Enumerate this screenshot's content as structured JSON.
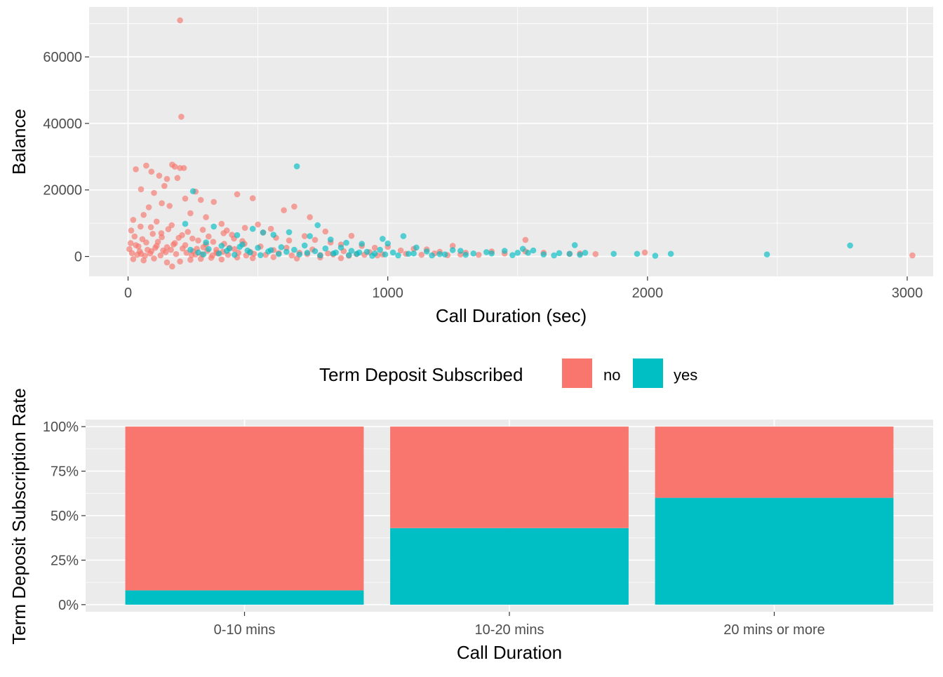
{
  "colors": {
    "no": "#F8766D",
    "yes": "#00BFC4",
    "panel": "#EBEBEB",
    "grid_major": "#FFFFFF",
    "tick_text": "#4D4D4D"
  },
  "legend": {
    "title": "Term Deposit Subscribed",
    "placement": "between-panels-center",
    "entries": [
      {
        "key": "no",
        "label": "no"
      },
      {
        "key": "yes",
        "label": "yes"
      }
    ]
  },
  "chart_data": [
    {
      "type": "scatter",
      "xlabel": "Call Duration (sec)",
      "ylabel": "Balance",
      "xlim": [
        -150,
        3100
      ],
      "ylim": [
        -6000,
        75000
      ],
      "xticks": [
        0,
        1000,
        2000,
        3000
      ],
      "xtick_labels": [
        "0",
        "1000",
        "2000",
        "3000"
      ],
      "yticks": [
        0,
        20000,
        40000,
        60000
      ],
      "ytick_labels": [
        "0",
        "20000",
        "40000",
        "60000"
      ],
      "grid": true,
      "series": [
        {
          "key": "no",
          "points": [
            [
              200,
              71000
            ],
            [
              205,
              42000
            ],
            [
              30,
              26200
            ],
            [
              70,
              27300
            ],
            [
              90,
              25500
            ],
            [
              120,
              24300
            ],
            [
              170,
              27600
            ],
            [
              180,
              27000
            ],
            [
              200,
              26600
            ],
            [
              215,
              26600
            ],
            [
              150,
              23300
            ],
            [
              190,
              23600
            ],
            [
              260,
              19500
            ],
            [
              50,
              20200
            ],
            [
              140,
              21200
            ],
            [
              100,
              19100
            ],
            [
              220,
              17400
            ],
            [
              280,
              17000
            ],
            [
              480,
              17500
            ],
            [
              640,
              15000
            ],
            [
              420,
              18700
            ],
            [
              330,
              16400
            ],
            [
              600,
              13900
            ],
            [
              700,
              11800
            ],
            [
              500,
              9600
            ],
            [
              550,
              8300
            ],
            [
              760,
              7500
            ],
            [
              860,
              6200
            ],
            [
              1530,
              5000
            ],
            [
              1250,
              3200
            ],
            [
              1100,
              2300
            ],
            [
              1530,
              1500
            ],
            [
              1800,
              700
            ],
            [
              1990,
              1200
            ],
            [
              1740,
              900
            ],
            [
              3020,
              300
            ],
            [
              20,
              11000
            ],
            [
              60,
              12500
            ],
            [
              80,
              14800
            ],
            [
              110,
              10500
            ],
            [
              130,
              16000
            ],
            [
              160,
              15200
            ],
            [
              240,
              13000
            ],
            [
              300,
              11800
            ],
            [
              360,
              9800
            ],
            [
              380,
              7800
            ],
            [
              400,
              6500
            ],
            [
              450,
              8600
            ],
            [
              520,
              7200
            ],
            [
              570,
              5600
            ],
            [
              620,
              4800
            ],
            [
              680,
              6100
            ],
            [
              720,
              5000
            ],
            [
              780,
              4200
            ],
            [
              820,
              3600
            ],
            [
              900,
              3200
            ],
            [
              950,
              2600
            ],
            [
              1000,
              2900
            ],
            [
              1050,
              1800
            ],
            [
              1150,
              2100
            ],
            [
              1200,
              1400
            ],
            [
              1300,
              1100
            ],
            [
              1400,
              1500
            ],
            [
              1450,
              900
            ],
            [
              1600,
              1100
            ],
            [
              1700,
              800
            ],
            [
              10,
              4000
            ],
            [
              25,
              6000
            ],
            [
              40,
              3000
            ],
            [
              55,
              5200
            ],
            [
              75,
              2000
            ],
            [
              95,
              6800
            ],
            [
              115,
              4400
            ],
            [
              135,
              1800
            ],
            [
              155,
              8200
            ],
            [
              175,
              3600
            ],
            [
              195,
              5600
            ],
            [
              210,
              2400
            ],
            [
              230,
              7400
            ],
            [
              250,
              1600
            ],
            [
              270,
              4800
            ],
            [
              290,
              2800
            ],
            [
              310,
              6000
            ],
            [
              340,
              1200
            ],
            [
              370,
              3800
            ],
            [
              410,
              2200
            ],
            [
              440,
              4600
            ],
            [
              470,
              1400
            ],
            [
              510,
              3000
            ],
            [
              560,
              1900
            ],
            [
              610,
              2600
            ],
            [
              660,
              1100
            ],
            [
              710,
              2100
            ],
            [
              770,
              900
            ],
            [
              830,
              1600
            ],
            [
              880,
              700
            ],
            [
              930,
              1300
            ],
            [
              980,
              600
            ],
            [
              1070,
              800
            ],
            [
              1130,
              500
            ],
            [
              1180,
              900
            ],
            [
              1230,
              400
            ],
            [
              1280,
              600
            ],
            [
              1350,
              500
            ],
            [
              15,
              1000
            ],
            [
              35,
              500
            ],
            [
              45,
              1500
            ],
            [
              65,
              200
            ],
            [
              85,
              900
            ],
            [
              105,
              2600
            ],
            [
              125,
              300
            ],
            [
              145,
              1300
            ],
            [
              165,
              2000
            ],
            [
              185,
              700
            ],
            [
              225,
              1100
            ],
            [
              245,
              400
            ],
            [
              265,
              2300
            ],
            [
              285,
              600
            ],
            [
              305,
              1700
            ],
            [
              325,
              300
            ],
            [
              345,
              900
            ],
            [
              365,
              1400
            ],
            [
              385,
              500
            ],
            [
              425,
              1100
            ],
            [
              455,
              300
            ],
            [
              485,
              800
            ],
            [
              530,
              500
            ],
            [
              580,
              1000
            ],
            [
              630,
              300
            ],
            [
              690,
              700
            ],
            [
              740,
              400
            ],
            [
              790,
              600
            ],
            [
              850,
              200
            ],
            [
              910,
              500
            ],
            [
              960,
              300
            ],
            [
              20,
              -800
            ],
            [
              60,
              -1200
            ],
            [
              100,
              -600
            ],
            [
              150,
              -1800
            ],
            [
              170,
              -3000
            ],
            [
              200,
              -1500
            ],
            [
              240,
              -1000
            ],
            [
              280,
              -700
            ],
            [
              320,
              -400
            ],
            [
              360,
              -900
            ],
            [
              420,
              -300
            ],
            [
              480,
              -500
            ],
            [
              560,
              -200
            ],
            [
              650,
              -600
            ],
            [
              740,
              -300
            ],
            [
              820,
              -500
            ],
            [
              12,
              7800
            ],
            [
              48,
              9000
            ],
            [
              88,
              8800
            ],
            [
              128,
              7000
            ],
            [
              168,
              9400
            ],
            [
              208,
              6400
            ],
            [
              248,
              5400
            ],
            [
              288,
              8000
            ],
            [
              328,
              4400
            ],
            [
              368,
              7000
            ],
            [
              408,
              5400
            ],
            [
              448,
              3800
            ],
            [
              5,
              2200
            ],
            [
              30,
              3400
            ],
            [
              50,
              800
            ],
            [
              70,
              4200
            ],
            [
              90,
              1600
            ],
            [
              110,
              3200
            ],
            [
              130,
              5800
            ],
            [
              150,
              2800
            ],
            [
              180,
              4000
            ],
            [
              220,
              3400
            ],
            [
              260,
              600
            ],
            [
              300,
              3600
            ],
            [
              340,
              2000
            ],
            [
              390,
              2600
            ]
          ]
        },
        {
          "key": "yes",
          "points": [
            [
              650,
              27100
            ],
            [
              250,
              19600
            ],
            [
              220,
              9800
            ],
            [
              330,
              9000
            ],
            [
              480,
              8300
            ],
            [
              520,
              7200
            ],
            [
              560,
              6500
            ],
            [
              420,
              6400
            ],
            [
              620,
              7300
            ],
            [
              700,
              6100
            ],
            [
              730,
              9400
            ],
            [
              780,
              5100
            ],
            [
              840,
              4100
            ],
            [
              900,
              3800
            ],
            [
              980,
              5300
            ],
            [
              1060,
              6100
            ],
            [
              1000,
              3900
            ],
            [
              1110,
              2700
            ],
            [
              1250,
              1900
            ],
            [
              1280,
              1700
            ],
            [
              1330,
              900
            ],
            [
              1380,
              1300
            ],
            [
              1450,
              1700
            ],
            [
              1500,
              1100
            ],
            [
              1520,
              2300
            ],
            [
              1560,
              1800
            ],
            [
              1600,
              600
            ],
            [
              1660,
              1000
            ],
            [
              1700,
              800
            ],
            [
              1720,
              3400
            ],
            [
              1760,
              1100
            ],
            [
              1870,
              800
            ],
            [
              1960,
              800
            ],
            [
              2030,
              200
            ],
            [
              2090,
              800
            ],
            [
              2460,
              600
            ],
            [
              2780,
              3300
            ],
            [
              300,
              4200
            ],
            [
              360,
              3200
            ],
            [
              390,
              2400
            ],
            [
              440,
              3600
            ],
            [
              460,
              1800
            ],
            [
              500,
              2600
            ],
            [
              540,
              1500
            ],
            [
              590,
              2800
            ],
            [
              640,
              2000
            ],
            [
              680,
              3300
            ],
            [
              720,
              1600
            ],
            [
              760,
              2400
            ],
            [
              800,
              1200
            ],
            [
              820,
              2700
            ],
            [
              860,
              1700
            ],
            [
              880,
              800
            ],
            [
              920,
              1400
            ],
            [
              950,
              900
            ],
            [
              970,
              2000
            ],
            [
              1020,
              1200
            ],
            [
              1080,
              800
            ],
            [
              1150,
              1500
            ],
            [
              1200,
              700
            ],
            [
              1300,
              500
            ],
            [
              1400,
              900
            ],
            [
              1480,
              400
            ],
            [
              1540,
              1100
            ],
            [
              1640,
              300
            ],
            [
              1740,
              500
            ],
            [
              240,
              2000
            ],
            [
              270,
              1200
            ],
            [
              290,
              600
            ],
            [
              310,
              2200
            ],
            [
              350,
              900
            ],
            [
              380,
              1700
            ],
            [
              410,
              500
            ],
            [
              430,
              2900
            ],
            [
              470,
              1200
            ],
            [
              510,
              400
            ],
            [
              550,
              1900
            ],
            [
              580,
              700
            ],
            [
              610,
              1400
            ],
            [
              660,
              600
            ],
            [
              690,
              1100
            ],
            [
              740,
              300
            ],
            [
              790,
              900
            ],
            [
              850,
              400
            ],
            [
              890,
              1200
            ],
            [
              940,
              200
            ],
            [
              990,
              600
            ],
            [
              1040,
              300
            ],
            [
              1100,
              900
            ],
            [
              1170,
              300
            ],
            [
              1220,
              600
            ]
          ]
        }
      ]
    },
    {
      "type": "bar",
      "stacked": true,
      "xlabel": "Call Duration",
      "ylabel": "Term Deposit Subscription Rate",
      "categories": [
        "0-10 mins",
        "10-20 mins",
        "20 mins or more"
      ],
      "ylim": [
        -0.04,
        1.04
      ],
      "yticks": [
        0,
        0.25,
        0.5,
        0.75,
        1.0
      ],
      "ytick_labels": [
        "0%",
        "25%",
        "50%",
        "75%",
        "100%"
      ],
      "grid": true,
      "series": [
        {
          "key": "yes",
          "values": [
            0.08,
            0.43,
            0.6
          ]
        },
        {
          "key": "no",
          "values": [
            0.92,
            0.57,
            0.4
          ]
        }
      ]
    }
  ]
}
